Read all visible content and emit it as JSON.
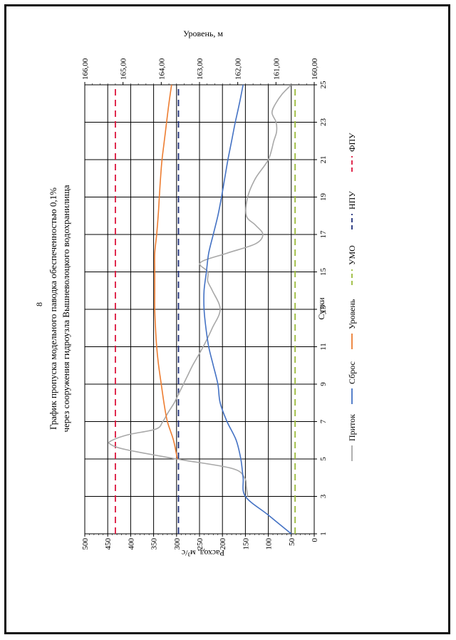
{
  "page_number": "8",
  "chart_data": {
    "type": "line",
    "title": "График пропуска модельного паводка обеспеченностью 0,1%",
    "subtitle": "через сооружения гидроузла Вышневолоцкого водохранилища",
    "xlabel": "Сутки",
    "ylabel": "Расход, м³/с",
    "y2label": "Уровень, м",
    "xlim": [
      1,
      25
    ],
    "ylim": [
      0,
      500
    ],
    "y2lim": [
      160,
      166
    ],
    "x_ticks": [
      "1",
      "3",
      "5",
      "7",
      "9",
      "11",
      "13",
      "15",
      "17",
      "19",
      "21",
      "23",
      "25"
    ],
    "y_ticks": [
      "0",
      "50",
      "100",
      "150",
      "200",
      "250",
      "300",
      "350",
      "400",
      "450",
      "500"
    ],
    "y2_ticks": [
      "160,00",
      "161,00",
      "162,00",
      "163,00",
      "164,00",
      "165,00",
      "166,00"
    ],
    "grid": true,
    "legend_position": "bottom",
    "colors": {
      "Приток": "#a8a8a8",
      "Сброс": "#4472c4",
      "Уровень": "#ed7d31",
      "УМО": "#9bbb3b",
      "НПУ": "#1f2f7a",
      "ФПУ": "#dc143c"
    },
    "series": [
      {
        "name": "Приток",
        "axis": "y",
        "style": "solid",
        "x": [
          3,
          3.5,
          4,
          4.5,
          5,
          5.5,
          5.8,
          6,
          6.3,
          6.6,
          7,
          7.5,
          8,
          8.5,
          9,
          9.5,
          10,
          11,
          12,
          13,
          14,
          14.5,
          15,
          15.5,
          16,
          16.5,
          17,
          17.5,
          18,
          19,
          20,
          21,
          22,
          22.5,
          23,
          23.5,
          24,
          24.5,
          25
        ],
        "y": [
          145,
          148,
          152,
          180,
          300,
          410,
          445,
          440,
          405,
          345,
          330,
          318,
          305,
          295,
          285,
          275,
          265,
          242,
          222,
          205,
          222,
          232,
          232,
          248,
          190,
          128,
          112,
          128,
          148,
          145,
          128,
          100,
          88,
          82,
          83,
          92,
          84,
          70,
          50
        ]
      },
      {
        "name": "Сброс",
        "axis": "y",
        "style": "solid",
        "x": [
          1,
          2,
          3,
          4,
          5,
          6,
          7,
          8,
          9,
          10,
          11,
          12,
          13,
          14,
          15,
          16,
          17,
          18,
          19,
          20,
          21,
          22,
          23,
          24,
          25
        ],
        "y": [
          50,
          100,
          150,
          155,
          160,
          170,
          190,
          205,
          210,
          220,
          230,
          236,
          240,
          240,
          235,
          230,
          220,
          210,
          202,
          195,
          188,
          180,
          172,
          163,
          155
        ]
      },
      {
        "name": "Уровень",
        "axis": "y2",
        "style": "solid",
        "x": [
          5,
          6,
          7,
          8,
          9,
          10,
          11,
          12,
          13,
          14,
          15,
          16,
          17,
          18,
          19,
          20,
          21,
          22,
          23,
          24,
          25
        ],
        "y": [
          163.58,
          163.68,
          163.84,
          163.93,
          164.0,
          164.07,
          164.12,
          164.15,
          164.17,
          164.17,
          164.17,
          164.17,
          164.12,
          164.08,
          164.05,
          164.02,
          163.98,
          163.92,
          163.86,
          163.8,
          163.73
        ]
      },
      {
        "name": "УМО",
        "axis": "y2",
        "style": "dashed",
        "x": [
          1,
          25
        ],
        "y": [
          160.5,
          160.5
        ]
      },
      {
        "name": "НПУ",
        "axis": "y2",
        "style": "dashed",
        "x": [
          1,
          25
        ],
        "y": [
          163.55,
          163.55
        ]
      },
      {
        "name": "ФПУ",
        "axis": "y2",
        "style": "dashed",
        "x": [
          1,
          25
        ],
        "y": [
          165.2,
          165.2
        ]
      }
    ]
  }
}
